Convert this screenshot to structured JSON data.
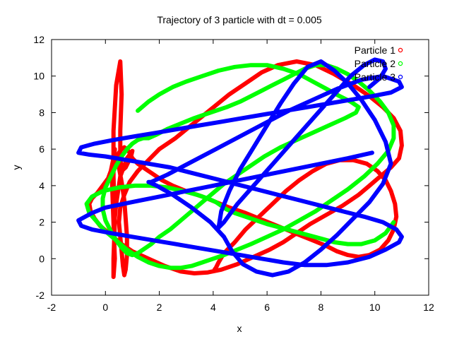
{
  "chart_data": {
    "type": "scatter",
    "title": "Trajectory of 3 particle with dt = 0.005",
    "xlabel": "x",
    "ylabel": "y",
    "xlim": [
      -2,
      12
    ],
    "ylim": [
      -2,
      12
    ],
    "xticks": [
      -2,
      0,
      2,
      4,
      6,
      8,
      10,
      12
    ],
    "yticks": [
      -2,
      0,
      2,
      4,
      6,
      8,
      10,
      12
    ],
    "legend_position": "top-right",
    "grid": false,
    "series": [
      {
        "name": "Particle 1",
        "color": "#ff0000",
        "x": [
          0.3,
          0.4,
          0.55,
          0.8,
          1.0,
          0.95,
          0.75,
          0.6,
          0.55,
          0.55,
          0.6,
          0.55,
          0.4,
          0.3,
          0.3,
          0.35,
          0.3,
          0.3,
          0.35,
          0.3,
          0.25,
          0.3,
          0.35,
          0.3,
          0.2,
          0.1,
          -0.1,
          -0.3,
          -0.5,
          -0.6,
          -0.55,
          -0.4,
          -0.2,
          0.2,
          0.6,
          1.0,
          1.6,
          2.2,
          2.8,
          3.3,
          3.8,
          4.3,
          4.9,
          5.5,
          6.1,
          6.6,
          7.1,
          7.6,
          8.2,
          8.8,
          9.4,
          9.8,
          10.2,
          10.6,
          10.9,
          11.0,
          10.95,
          10.7,
          10.3,
          9.8,
          9.2,
          8.5,
          7.8,
          7.1,
          6.4,
          5.8,
          5.2,
          4.6,
          4.1,
          3.6,
          3.1,
          2.6,
          2.0,
          1.6,
          1.2,
          0.9,
          0.7,
          0.55,
          0.5,
          0.55,
          0.6,
          0.65,
          0.7,
          0.75,
          0.8,
          0.8,
          0.75,
          0.7,
          0.6,
          0.5,
          0.4,
          0.5,
          0.6,
          0.7,
          0.8,
          0.9,
          1.0,
          1.2,
          1.5,
          1.8,
          2.1,
          2.5,
          3.0,
          3.6,
          4.1,
          4.6,
          5.2,
          5.7,
          6.2,
          6.7,
          7.2,
          7.7,
          8.2,
          8.6,
          9.0,
          9.4,
          9.8,
          10.2,
          10.5,
          10.7,
          10.8,
          10.75,
          10.6,
          10.4,
          10.1,
          9.7,
          9.2,
          8.7,
          8.2,
          7.7,
          7.2,
          6.7,
          6.2,
          5.7,
          5.2,
          4.8,
          4.4,
          4.2,
          4.1,
          4.05
        ],
        "y": [
          1.5,
          3.0,
          4.5,
          5.5,
          5.9,
          5.6,
          5.0,
          4.8,
          5.5,
          7.0,
          9.0,
          10.8,
          9.5,
          7.0,
          4.5,
          2.0,
          0.0,
          -1.0,
          0.0,
          2.0,
          4.0,
          5.2,
          6.0,
          5.5,
          4.8,
          4.4,
          4.0,
          3.6,
          3.3,
          3.0,
          2.6,
          2.2,
          1.8,
          1.3,
          0.8,
          0.4,
          0.0,
          -0.4,
          -0.7,
          -0.8,
          -0.75,
          -0.6,
          -0.3,
          0.1,
          0.5,
          0.9,
          1.4,
          1.9,
          2.4,
          2.9,
          3.5,
          4.0,
          4.5,
          5.0,
          5.5,
          6.2,
          7.0,
          7.7,
          8.3,
          8.9,
          9.5,
          10.1,
          10.6,
          10.8,
          10.6,
          10.2,
          9.6,
          9.0,
          8.4,
          7.8,
          7.2,
          6.6,
          6.0,
          5.4,
          4.8,
          4.2,
          3.5,
          2.8,
          2.0,
          1.2,
          0.4,
          -0.4,
          -0.9,
          -0.6,
          0.2,
          1.2,
          2.2,
          3.2,
          4.2,
          5.0,
          5.5,
          5.8,
          6.0,
          6.1,
          6.0,
          5.8,
          5.5,
          5.2,
          4.9,
          4.6,
          4.3,
          4.0,
          3.7,
          3.4,
          3.1,
          2.8,
          2.5,
          2.2,
          1.9,
          1.6,
          1.3,
          1.0,
          0.7,
          0.4,
          0.2,
          0.1,
          0.2,
          0.5,
          1.0,
          1.6,
          2.3,
          3.0,
          3.7,
          4.3,
          4.8,
          5.2,
          5.4,
          5.4,
          5.2,
          4.8,
          4.3,
          3.7,
          3.0,
          2.3,
          1.6,
          0.9,
          0.3,
          -0.2,
          -0.5,
          -0.6
        ]
      },
      {
        "name": "Particle 2",
        "color": "#00ff00",
        "x": [
          1.2,
          1.6,
          2.0,
          2.5,
          3.0,
          3.6,
          4.2,
          4.8,
          5.4,
          6.0,
          6.6,
          7.2,
          7.7,
          8.2,
          8.7,
          9.1,
          9.4,
          9.3,
          8.9,
          8.3,
          7.7,
          7.1,
          6.5,
          5.9,
          5.4,
          4.9,
          4.4,
          4.0,
          3.6,
          3.2,
          2.8,
          2.4,
          2.0,
          1.7,
          1.4,
          1.2,
          1.0,
          0.8,
          0.6,
          0.4,
          0.2,
          0.0,
          -0.1,
          -0.1,
          0.0,
          0.2,
          0.4,
          0.6,
          0.8,
          1.0,
          1.2,
          1.4,
          1.6,
          1.9,
          2.3,
          2.8,
          3.3,
          3.9,
          4.5,
          5.0,
          5.4,
          5.8,
          6.2,
          6.6,
          7.0,
          7.4,
          7.8,
          8.2,
          8.6,
          9.0,
          9.4,
          9.8,
          10.2,
          10.5,
          10.7,
          10.7,
          10.5,
          10.1,
          9.6,
          9.0,
          8.4,
          7.8,
          7.2,
          6.6,
          6.0,
          5.4,
          4.9,
          4.4,
          4.0,
          3.6,
          3.2,
          2.8,
          2.4,
          2.0,
          1.6,
          1.2,
          0.8,
          0.4,
          0.0,
          -0.3,
          -0.6,
          -0.7,
          -0.5,
          -0.1,
          0.5,
          1.1,
          1.7,
          2.3,
          2.9,
          3.4,
          3.8,
          4.1,
          4.3,
          4.5,
          4.8,
          5.2,
          5.6,
          6.0,
          6.5,
          7.0,
          7.5,
          8.0,
          8.5,
          9.0,
          9.5,
          10.0,
          10.4,
          10.7
        ],
        "y": [
          8.1,
          8.6,
          9.0,
          9.4,
          9.7,
          10.0,
          10.3,
          10.5,
          10.6,
          10.6,
          10.4,
          10.1,
          9.7,
          9.3,
          8.9,
          8.6,
          8.3,
          8.0,
          7.7,
          7.3,
          6.9,
          6.5,
          6.1,
          5.6,
          5.1,
          4.6,
          4.1,
          3.6,
          3.1,
          2.6,
          2.1,
          1.6,
          1.2,
          0.8,
          0.5,
          0.3,
          0.2,
          0.3,
          0.6,
          1.0,
          1.5,
          2.1,
          2.7,
          3.3,
          3.9,
          4.5,
          5.1,
          5.6,
          6.0,
          6.3,
          6.5,
          6.6,
          6.6,
          6.8,
          7.1,
          7.4,
          7.7,
          8.0,
          8.3,
          8.6,
          8.9,
          9.2,
          9.5,
          9.8,
          10.1,
          10.4,
          10.6,
          10.6,
          10.4,
          10.1,
          9.7,
          9.2,
          8.6,
          8.0,
          7.3,
          6.6,
          5.9,
          5.2,
          4.5,
          3.8,
          3.2,
          2.6,
          2.1,
          1.6,
          1.2,
          0.8,
          0.5,
          0.2,
          0.0,
          -0.2,
          -0.4,
          -0.5,
          -0.5,
          -0.4,
          -0.2,
          0.1,
          0.5,
          1.0,
          1.5,
          2.0,
          2.5,
          3.0,
          3.4,
          3.7,
          3.9,
          4.0,
          4.0,
          3.9,
          3.7,
          3.5,
          3.3,
          3.1,
          2.9,
          2.7,
          2.5,
          2.3,
          2.1,
          1.9,
          1.7,
          1.5,
          1.3,
          1.1,
          0.9,
          0.8,
          0.8,
          1.0,
          1.4,
          2.0
        ]
      },
      {
        "name": "Particle 3",
        "color": "#0000ff",
        "x": [
          9.9,
          9.0,
          8.0,
          7.0,
          6.0,
          5.0,
          4.0,
          3.0,
          2.0,
          1.0,
          0.0,
          -0.5,
          -1.0,
          -0.9,
          -0.5,
          0.2,
          1.0,
          1.8,
          2.6,
          3.4,
          4.2,
          5.0,
          5.8,
          6.6,
          7.4,
          8.2,
          9.0,
          9.8,
          10.4,
          10.9,
          11.0,
          10.8,
          10.3,
          9.6,
          8.8,
          8.0,
          7.2,
          6.4,
          5.6,
          4.8,
          4.0,
          3.2,
          2.4,
          1.6,
          0.8,
          0.0,
          -0.6,
          -1.0,
          -0.9,
          -0.4,
          0.3,
          1.1,
          1.9,
          2.7,
          3.5,
          4.3,
          5.1,
          5.9,
          6.7,
          7.5,
          8.3,
          9.1,
          9.9,
          10.6,
          11.0,
          10.9,
          10.3,
          9.5,
          8.6,
          7.7,
          6.8,
          5.9,
          5.0,
          4.1,
          3.2,
          2.3,
          1.7,
          1.6,
          1.9,
          2.5,
          3.2,
          3.9,
          4.4,
          4.7,
          5.1,
          5.6,
          6.2,
          6.8,
          7.4,
          8.0,
          8.6,
          9.2,
          9.8,
          10.3,
          10.6,
          10.4,
          10.0,
          9.5,
          9.0,
          8.5,
          8.0,
          7.5,
          7.0,
          6.5,
          6.0,
          5.5,
          5.0,
          4.6,
          4.3,
          4.2,
          4.4,
          4.9,
          5.5,
          6.1,
          6.7,
          7.3,
          7.9,
          8.5,
          9.1,
          9.6,
          10.0,
          10.3,
          10.4,
          10.2,
          9.8
        ],
        "y": [
          5.8,
          5.5,
          5.2,
          4.9,
          4.6,
          4.3,
          4.0,
          3.7,
          3.4,
          3.1,
          2.8,
          2.5,
          2.1,
          1.8,
          1.6,
          1.4,
          1.2,
          1.0,
          0.8,
          0.6,
          0.4,
          0.2,
          0.0,
          -0.2,
          -0.35,
          -0.35,
          -0.2,
          0.1,
          0.5,
          0.9,
          1.2,
          1.6,
          2.0,
          2.3,
          2.6,
          2.9,
          3.2,
          3.5,
          3.8,
          4.1,
          4.4,
          4.7,
          5.0,
          5.2,
          5.4,
          5.6,
          5.7,
          5.8,
          6.1,
          6.3,
          6.5,
          6.7,
          6.9,
          7.1,
          7.3,
          7.5,
          7.7,
          7.9,
          8.1,
          8.3,
          8.5,
          8.7,
          8.9,
          9.1,
          9.4,
          9.7,
          10.0,
          9.8,
          9.3,
          8.7,
          8.1,
          7.4,
          6.7,
          6.0,
          5.3,
          4.6,
          4.2,
          4.2,
          4.0,
          3.5,
          2.8,
          2.0,
          1.2,
          0.4,
          -0.3,
          -0.7,
          -0.9,
          -0.7,
          -0.2,
          0.5,
          1.3,
          2.2,
          3.1,
          4.1,
          5.2,
          6.4,
          7.6,
          8.7,
          9.6,
          10.3,
          10.8,
          10.5,
          9.6,
          8.5,
          7.3,
          6.1,
          4.9,
          3.7,
          2.6,
          1.7,
          2.0,
          3.0,
          4.0,
          5.0,
          6.0,
          7.0,
          8.0,
          9.0,
          10.0,
          10.6,
          10.9,
          10.8,
          10.4,
          9.9,
          9.4
        ]
      }
    ]
  }
}
